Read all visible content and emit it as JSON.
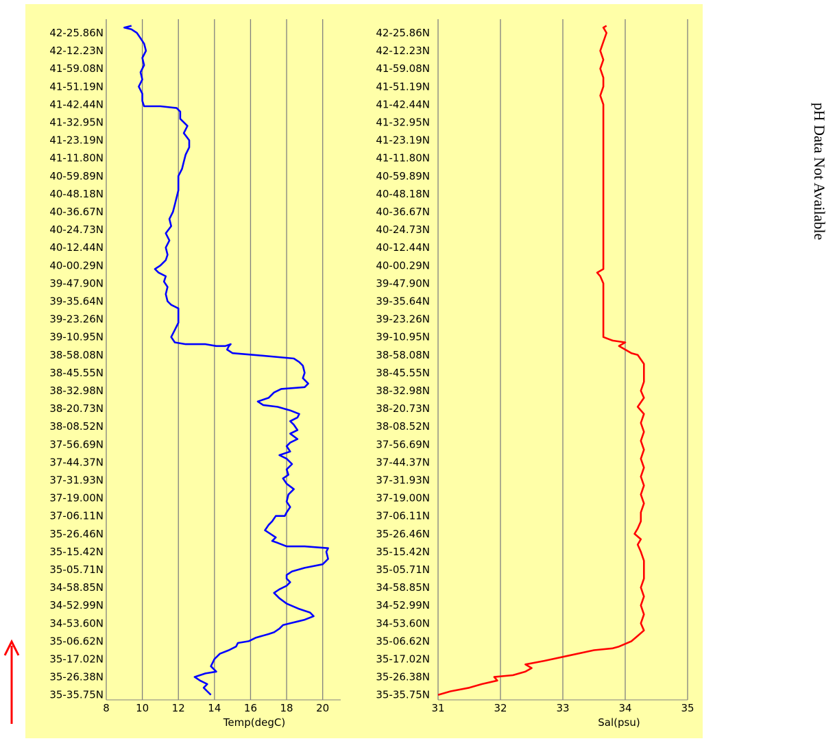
{
  "chart_data": [
    {
      "type": "line",
      "xlabel": "Temp(degC)",
      "xlim": [
        8,
        21
      ],
      "xticks": [
        8,
        10,
        12,
        14,
        16,
        18,
        20
      ],
      "color": "#0000ff",
      "ylabels": [
        "42-25.86N",
        "42-12.23N",
        "41-59.08N",
        "41-51.19N",
        "41-42.44N",
        "41-32.95N",
        "41-23.19N",
        "41-11.80N",
        "40-59.89N",
        "40-48.18N",
        "40-36.67N",
        "40-24.73N",
        "40-12.44N",
        "40-00.29N",
        "39-47.90N",
        "39-35.64N",
        "39-23.26N",
        "39-10.95N",
        "38-58.08N",
        "38-45.55N",
        "38-32.98N",
        "38-20.73N",
        "38-08.52N",
        "37-56.69N",
        "37-44.37N",
        "37-31.93N",
        "37-19.00N",
        "37-06.11N",
        "35-26.46N",
        "35-15.42N",
        "35-05.71N",
        "34-58.85N",
        "34-52.99N",
        "34-53.60N",
        "35-06.62N",
        "35-17.02N",
        "35-26.38N",
        "35-35.75N"
      ],
      "series": [
        {
          "points": [
            [
              13.8,
              37
            ],
            [
              13.6,
              36.8
            ],
            [
              13.4,
              36.6
            ],
            [
              13.6,
              36.4
            ],
            [
              13.2,
              36.2
            ],
            [
              12.9,
              36.0
            ],
            [
              13.5,
              35.8
            ],
            [
              14.1,
              35.7
            ],
            [
              13.8,
              35.4
            ],
            [
              14.0,
              35.0
            ],
            [
              14.3,
              34.7
            ],
            [
              14.8,
              34.5
            ],
            [
              15.2,
              34.3
            ],
            [
              15.3,
              34.1
            ],
            [
              15.9,
              34.0
            ],
            [
              16.3,
              33.8
            ],
            [
              17.0,
              33.6
            ],
            [
              17.3,
              33.5
            ],
            [
              17.6,
              33.3
            ],
            [
              17.8,
              33.1
            ],
            [
              18.2,
              33.0
            ],
            [
              18.6,
              32.9
            ],
            [
              19.0,
              32.8
            ],
            [
              19.5,
              32.6
            ],
            [
              19.3,
              32.4
            ],
            [
              18.7,
              32.2
            ],
            [
              18.0,
              31.9
            ],
            [
              17.6,
              31.6
            ],
            [
              17.3,
              31.3
            ],
            [
              17.6,
              31.1
            ],
            [
              18.0,
              30.9
            ],
            [
              18.2,
              30.7
            ],
            [
              18.0,
              30.5
            ],
            [
              18.0,
              30.3
            ],
            [
              18.3,
              30.1
            ],
            [
              19.0,
              29.9
            ],
            [
              20.0,
              29.7
            ],
            [
              20.3,
              29.4
            ],
            [
              20.2,
              29.0
            ],
            [
              20.3,
              28.8
            ],
            [
              19.0,
              28.7
            ],
            [
              18.0,
              28.7
            ],
            [
              17.5,
              28.5
            ],
            [
              17.2,
              28.4
            ],
            [
              17.4,
              28.2
            ],
            [
              17.1,
              28.0
            ],
            [
              16.8,
              27.8
            ],
            [
              17.0,
              27.5
            ],
            [
              17.2,
              27.3
            ],
            [
              17.4,
              27.0
            ],
            [
              17.9,
              27.0
            ],
            [
              18.0,
              26.8
            ],
            [
              18.2,
              26.5
            ],
            [
              18.0,
              26.2
            ],
            [
              18.1,
              25.8
            ],
            [
              18.4,
              25.5
            ],
            [
              18.0,
              25.2
            ],
            [
              17.8,
              24.9
            ],
            [
              18.1,
              24.7
            ],
            [
              18.0,
              24.4
            ],
            [
              18.3,
              24.1
            ],
            [
              18.0,
              23.8
            ],
            [
              17.6,
              23.6
            ],
            [
              18.2,
              23.4
            ],
            [
              18.0,
              23.1
            ],
            [
              18.2,
              22.9
            ],
            [
              18.6,
              22.7
            ],
            [
              18.2,
              22.4
            ],
            [
              18.6,
              22.2
            ],
            [
              18.4,
              21.9
            ],
            [
              18.2,
              21.7
            ],
            [
              18.6,
              21.5
            ],
            [
              18.7,
              21.3
            ],
            [
              18.2,
              21.1
            ],
            [
              17.5,
              20.9
            ],
            [
              16.7,
              20.8
            ],
            [
              16.4,
              20.6
            ],
            [
              17.0,
              20.4
            ],
            [
              17.3,
              20.1
            ],
            [
              17.7,
              19.9
            ],
            [
              19.0,
              19.8
            ],
            [
              19.2,
              19.6
            ],
            [
              18.9,
              19.3
            ],
            [
              19.0,
              19.0
            ],
            [
              18.9,
              18.6
            ],
            [
              18.7,
              18.4
            ],
            [
              18.4,
              18.2
            ],
            [
              16.2,
              18.0
            ],
            [
              15.0,
              17.9
            ],
            [
              14.7,
              17.7
            ],
            [
              14.8,
              17.5
            ],
            [
              14.9,
              17.4
            ],
            [
              14.6,
              17.5
            ],
            [
              14.1,
              17.5
            ],
            [
              13.5,
              17.4
            ],
            [
              13.0,
              17.4
            ],
            [
              12.4,
              17.4
            ],
            [
              11.8,
              17.3
            ],
            [
              11.6,
              17.0
            ],
            [
              11.8,
              16.6
            ],
            [
              12.0,
              16.2
            ],
            [
              12.0,
              15.8
            ],
            [
              12.0,
              15.4
            ],
            [
              11.6,
              15.2
            ],
            [
              11.4,
              15.0
            ],
            [
              11.3,
              14.6
            ],
            [
              11.4,
              14.2
            ],
            [
              11.2,
              13.9
            ],
            [
              11.3,
              13.6
            ],
            [
              10.9,
              13.4
            ],
            [
              10.7,
              13.2
            ],
            [
              11.0,
              13.0
            ],
            [
              11.3,
              12.7
            ],
            [
              11.4,
              12.4
            ],
            [
              11.3,
              12.0
            ],
            [
              11.5,
              11.6
            ],
            [
              11.3,
              11.2
            ],
            [
              11.6,
              10.8
            ],
            [
              11.5,
              10.4
            ],
            [
              11.7,
              10.0
            ],
            [
              11.8,
              9.6
            ],
            [
              11.9,
              9.2
            ],
            [
              12.0,
              8.8
            ],
            [
              12.0,
              8.4
            ],
            [
              12.0,
              8.0
            ],
            [
              12.2,
              7.6
            ],
            [
              12.3,
              7.2
            ],
            [
              12.4,
              6.8
            ],
            [
              12.6,
              6.4
            ],
            [
              12.6,
              6.0
            ],
            [
              12.3,
              5.6
            ],
            [
              12.5,
              5.2
            ],
            [
              12.1,
              4.8
            ],
            [
              12.1,
              4.4
            ],
            [
              11.9,
              4.2
            ],
            [
              11.0,
              4.1
            ],
            [
              10.1,
              4.1
            ],
            [
              10.0,
              3.8
            ],
            [
              10.0,
              3.4
            ],
            [
              9.8,
              3.0
            ],
            [
              10.0,
              2.6
            ],
            [
              9.9,
              2.2
            ],
            [
              10.1,
              1.8
            ],
            [
              10.0,
              1.4
            ],
            [
              10.2,
              1.0
            ],
            [
              10.1,
              0.6
            ],
            [
              9.9,
              0.3
            ],
            [
              9.7,
              0.0
            ],
            [
              9.4,
              -0.2
            ],
            [
              9.0,
              -0.3
            ],
            [
              9.4,
              -0.4
            ]
          ]
        }
      ]
    },
    {
      "type": "line",
      "xlabel": "Sal(psu)",
      "xlim": [
        31,
        35
      ],
      "xticks": [
        31,
        32,
        33,
        34,
        35
      ],
      "color": "#ff0000",
      "ylabels": [
        "42-25.86N",
        "42-12.23N",
        "41-59.08N",
        "41-51.19N",
        "41-42.44N",
        "41-32.95N",
        "41-23.19N",
        "41-11.80N",
        "40-59.89N",
        "40-48.18N",
        "40-36.67N",
        "40-24.73N",
        "40-12.44N",
        "40-00.29N",
        "39-47.90N",
        "39-35.64N",
        "39-23.26N",
        "39-10.95N",
        "38-58.08N",
        "38-45.55N",
        "38-32.98N",
        "38-20.73N",
        "38-08.52N",
        "37-56.69N",
        "37-44.37N",
        "37-31.93N",
        "37-19.00N",
        "37-06.11N",
        "35-26.46N",
        "35-15.42N",
        "35-05.71N",
        "34-58.85N",
        "34-52.99N",
        "34-53.60N",
        "35-06.62N",
        "35-17.02N",
        "35-26.38N",
        "35-35.75N"
      ],
      "series": [
        {
          "points": [
            [
              31.0,
              37
            ],
            [
              31.2,
              36.8
            ],
            [
              31.5,
              36.6
            ],
            [
              31.7,
              36.4
            ],
            [
              31.95,
              36.2
            ],
            [
              31.9,
              36.0
            ],
            [
              32.2,
              35.9
            ],
            [
              32.4,
              35.7
            ],
            [
              32.5,
              35.5
            ],
            [
              32.4,
              35.3
            ],
            [
              32.7,
              35.1
            ],
            [
              33.1,
              34.8
            ],
            [
              33.5,
              34.5
            ],
            [
              33.8,
              34.4
            ],
            [
              33.9,
              34.3
            ],
            [
              34.1,
              34.0
            ],
            [
              34.2,
              33.7
            ],
            [
              34.3,
              33.4
            ],
            [
              34.25,
              33.0
            ],
            [
              34.3,
              32.5
            ],
            [
              34.25,
              32.0
            ],
            [
              34.3,
              31.5
            ],
            [
              34.25,
              31.0
            ],
            [
              34.3,
              30.5
            ],
            [
              34.3,
              30.0
            ],
            [
              34.3,
              29.5
            ],
            [
              34.25,
              29.0
            ],
            [
              34.2,
              28.6
            ],
            [
              34.25,
              28.3
            ],
            [
              34.15,
              28.0
            ],
            [
              34.2,
              27.7
            ],
            [
              34.25,
              27.3
            ],
            [
              34.25,
              26.8
            ],
            [
              34.3,
              26.3
            ],
            [
              34.25,
              25.8
            ],
            [
              34.3,
              25.3
            ],
            [
              34.25,
              24.8
            ],
            [
              34.3,
              24.3
            ],
            [
              34.25,
              23.8
            ],
            [
              34.3,
              23.3
            ],
            [
              34.25,
              22.8
            ],
            [
              34.3,
              22.3
            ],
            [
              34.25,
              21.8
            ],
            [
              34.3,
              21.3
            ],
            [
              34.2,
              20.9
            ],
            [
              34.3,
              20.4
            ],
            [
              34.25,
              20.0
            ],
            [
              34.3,
              19.5
            ],
            [
              34.3,
              19.0
            ],
            [
              34.3,
              18.5
            ],
            [
              34.2,
              18.0
            ],
            [
              34.1,
              17.9
            ],
            [
              34.0,
              17.7
            ],
            [
              33.9,
              17.5
            ],
            [
              34.0,
              17.3
            ],
            [
              33.8,
              17.2
            ],
            [
              33.65,
              17.0
            ],
            [
              33.65,
              16.0
            ],
            [
              33.65,
              15.0
            ],
            [
              33.65,
              14.0
            ],
            [
              33.6,
              13.6
            ],
            [
              33.55,
              13.4
            ],
            [
              33.65,
              13.2
            ],
            [
              33.65,
              12.0
            ],
            [
              33.65,
              11.0
            ],
            [
              33.65,
              10.0
            ],
            [
              33.65,
              9.0
            ],
            [
              33.65,
              8.0
            ],
            [
              33.65,
              7.0
            ],
            [
              33.65,
              6.0
            ],
            [
              33.65,
              5.0
            ],
            [
              33.65,
              4.0
            ],
            [
              33.6,
              3.5
            ],
            [
              33.65,
              3.0
            ],
            [
              33.65,
              2.5
            ],
            [
              33.6,
              2.0
            ],
            [
              33.65,
              1.5
            ],
            [
              33.6,
              1.0
            ],
            [
              33.65,
              0.5
            ],
            [
              33.7,
              0.0
            ],
            [
              33.65,
              -0.3
            ],
            [
              33.7,
              -0.4
            ]
          ]
        }
      ]
    }
  ],
  "ph_note": "pH Data Not Available"
}
